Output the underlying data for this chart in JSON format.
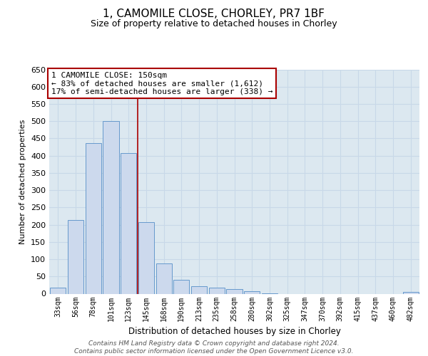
{
  "title": "1, CAMOMILE CLOSE, CHORLEY, PR7 1BF",
  "subtitle": "Size of property relative to detached houses in Chorley",
  "xlabel": "Distribution of detached houses by size in Chorley",
  "ylabel": "Number of detached properties",
  "bar_labels": [
    "33sqm",
    "56sqm",
    "78sqm",
    "101sqm",
    "123sqm",
    "145sqm",
    "168sqm",
    "190sqm",
    "213sqm",
    "235sqm",
    "258sqm",
    "280sqm",
    "302sqm",
    "325sqm",
    "347sqm",
    "370sqm",
    "392sqm",
    "415sqm",
    "437sqm",
    "460sqm",
    "482sqm"
  ],
  "bar_values": [
    18,
    213,
    437,
    500,
    408,
    208,
    88,
    40,
    22,
    18,
    13,
    8,
    2,
    0,
    0,
    0,
    0,
    0,
    0,
    0,
    5
  ],
  "bar_color": "#ccd9ed",
  "bar_edge_color": "#6699cc",
  "vline_index": 5,
  "vline_color": "#aa0000",
  "annotation_title": "1 CAMOMILE CLOSE: 150sqm",
  "annotation_line1": "← 83% of detached houses are smaller (1,612)",
  "annotation_line2": "17% of semi-detached houses are larger (338) →",
  "annotation_box_color": "#ffffff",
  "annotation_box_edge": "#aa0000",
  "ylim": [
    0,
    650
  ],
  "yticks": [
    0,
    50,
    100,
    150,
    200,
    250,
    300,
    350,
    400,
    450,
    500,
    550,
    600,
    650
  ],
  "footer_line1": "Contains HM Land Registry data © Crown copyright and database right 2024.",
  "footer_line2": "Contains public sector information licensed under the Open Government Licence v3.0.",
  "bg_color": "#ffffff",
  "grid_color": "#c8d8e8"
}
